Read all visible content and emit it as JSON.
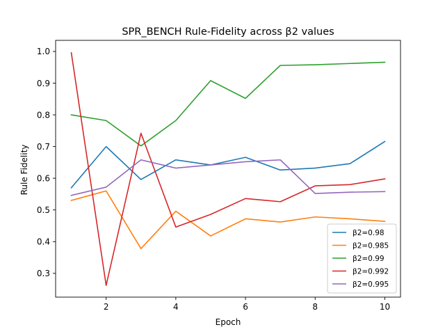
{
  "chart_data": {
    "type": "line",
    "title": "SPR_BENCH Rule-Fidelity across β2 values",
    "xlabel": "Epoch",
    "ylabel": "Rule Fidelity",
    "xlim": [
      0.55,
      10.45
    ],
    "ylim": [
      0.225,
      1.035
    ],
    "x_ticks": [
      2,
      4,
      6,
      8,
      10
    ],
    "y_ticks": [
      0.3,
      0.4,
      0.5,
      0.6,
      0.7,
      0.8,
      0.9,
      1.0
    ],
    "y_tick_labels": [
      "0.3",
      "0.4",
      "0.5",
      "0.6",
      "0.7",
      "0.8",
      "0.9",
      "1.0"
    ],
    "grid": false,
    "legend_position": "lower-right",
    "x": [
      1,
      2,
      3,
      4,
      5,
      6,
      7,
      8,
      9,
      10
    ],
    "series": [
      {
        "name": "β2=0.98",
        "color": "#1f77b4",
        "values": [
          0.57,
          0.7,
          0.596,
          0.658,
          0.642,
          0.666,
          0.626,
          0.632,
          0.646,
          0.716
        ]
      },
      {
        "name": "β2=0.985",
        "color": "#ff7f0e",
        "values": [
          0.53,
          0.56,
          0.378,
          0.496,
          0.418,
          0.472,
          0.462,
          0.478,
          0.472,
          0.464
        ]
      },
      {
        "name": "β2=0.99",
        "color": "#2ca02c",
        "values": [
          0.8,
          0.782,
          0.702,
          0.782,
          0.908,
          0.852,
          0.956,
          0.958,
          0.962,
          0.966
        ]
      },
      {
        "name": "β2=0.992",
        "color": "#d62728",
        "values": [
          0.996,
          0.262,
          0.742,
          0.446,
          0.486,
          0.536,
          0.526,
          0.576,
          0.58,
          0.598
        ]
      },
      {
        "name": "β2=0.995",
        "color": "#9467bd",
        "values": [
          0.546,
          0.572,
          0.658,
          0.632,
          0.642,
          0.652,
          0.658,
          0.552,
          0.556,
          0.558
        ]
      }
    ]
  }
}
